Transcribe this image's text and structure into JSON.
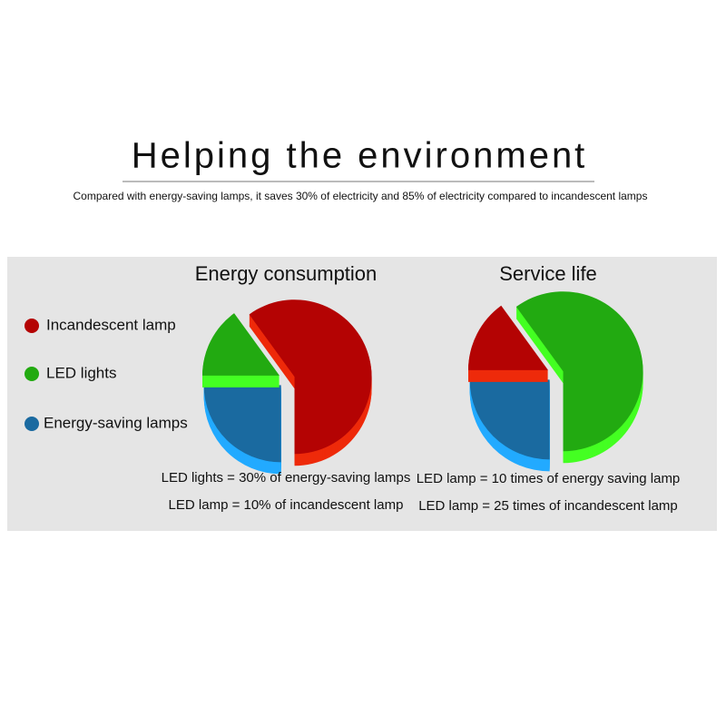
{
  "title": "Helping the environment",
  "subtitle": "Compared with energy-saving lamps, it saves 30% of electricity and 85% of electricity compared to incandescent lamps",
  "chart_data": [
    {
      "type": "pie",
      "title": "Energy consumption",
      "categories": [
        "Incandescent lamp",
        "LED lights",
        "Energy-saving lamps"
      ],
      "values": [
        60,
        15,
        25
      ],
      "colors": [
        "#b40303",
        "#22aa11",
        "#1a6aa0"
      ],
      "annotations": [
        "LED lights = 30% of energy-saving lamps",
        "LED lamp = 10% of incandescent lamp"
      ]
    },
    {
      "type": "pie",
      "title": "Service life",
      "categories": [
        "Incandescent lamp",
        "LED lights",
        "Energy-saving lamps"
      ],
      "values": [
        15,
        60,
        25
      ],
      "colors": [
        "#b40303",
        "#22aa11",
        "#1a6aa0"
      ],
      "annotations": [
        "LED lamp = 10 times of energy saving lamp",
        "LED lamp = 25 times of incandescent lamp"
      ]
    }
  ]
}
